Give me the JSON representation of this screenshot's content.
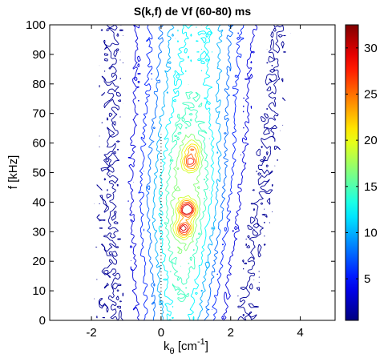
{
  "chart_data": {
    "type": "contour",
    "title": "S(k,f) de Vf (60-80) ms",
    "xlabel": "k_θ [cm^-1]",
    "xlabel_parts": {
      "base": "k",
      "sub": "θ",
      "rest": " [cm",
      "sup": "-1",
      "close": "]"
    },
    "ylabel": "f [kHz]",
    "xlim": [
      -3.2,
      5
    ],
    "ylim": [
      0,
      100
    ],
    "x_ticks": [
      -2,
      0,
      2,
      4
    ],
    "y_ticks": [
      0,
      10,
      20,
      30,
      40,
      50,
      60,
      70,
      80,
      90,
      100
    ],
    "grid": false,
    "colorbar": {
      "min": 0.5,
      "max": 32.5,
      "ticks": [
        5,
        10,
        15,
        20,
        25,
        30
      ],
      "colormap": "jet",
      "position": "right"
    },
    "field": {
      "ridge_center_kx": [
        {
          "f": 0,
          "k": 0.55
        },
        {
          "f": 30,
          "k": 0.65
        },
        {
          "f": 60,
          "k": 0.8
        },
        {
          "f": 100,
          "k": 1.0
        }
      ],
      "peaks": [
        {
          "k": 0.75,
          "f": 37.5,
          "value": 32
        },
        {
          "k": 0.65,
          "f": 31,
          "value": 28
        },
        {
          "k": 0.85,
          "f": 53.5,
          "value": 26
        },
        {
          "k": 0.9,
          "f": 58,
          "value": 22
        }
      ],
      "ridge_max_value": 15
    },
    "contour_levels": 14,
    "reference_line": {
      "k": 0,
      "style": "dotted",
      "f_range": [
        0,
        63
      ]
    }
  }
}
